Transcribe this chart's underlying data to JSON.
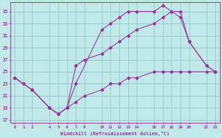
{
  "xlabel": "Windchill (Refroidissement éolien,°C)",
  "bg_color": "#c0e8e8",
  "grid_color": "#99cccc",
  "line_color": "#993399",
  "line1_x": [
    0,
    1,
    2,
    4,
    5,
    6,
    7,
    10,
    11,
    12,
    13,
    14,
    16,
    17,
    18,
    19,
    20,
    22,
    23
  ],
  "line1_y": [
    24,
    23,
    22,
    19,
    18,
    19,
    23,
    32,
    33,
    34,
    35,
    35,
    35,
    36,
    35,
    34,
    30,
    26,
    25
  ],
  "line2_x": [
    0,
    1,
    2,
    4,
    5,
    6,
    7,
    8,
    10,
    11,
    12,
    13,
    14,
    16,
    17,
    18,
    19,
    20,
    22,
    23
  ],
  "line2_y": [
    24,
    23,
    22,
    19,
    18,
    19,
    26,
    27,
    28,
    29,
    30,
    31,
    32,
    33,
    34,
    35,
    35,
    30,
    26,
    25
  ],
  "line3_x": [
    0,
    2,
    4,
    5,
    6,
    7,
    8,
    10,
    11,
    12,
    13,
    14,
    16,
    17,
    18,
    19,
    20,
    22,
    23
  ],
  "line3_y": [
    24,
    22,
    19,
    18,
    19,
    20,
    21,
    22,
    23,
    23,
    24,
    24,
    25,
    25,
    25,
    25,
    25,
    25,
    25
  ],
  "xtick_positions": [
    0,
    1,
    2,
    4,
    5,
    6,
    7,
    8,
    10,
    11,
    12,
    13,
    14,
    16,
    17,
    18,
    19,
    20,
    22,
    23
  ],
  "xtick_labels": [
    "0",
    "1",
    "2",
    "4",
    "5",
    "6",
    "7",
    "8",
    "10",
    "11",
    "12",
    "13",
    "14",
    "16",
    "17",
    "18",
    "19",
    "20",
    "22",
    "23"
  ],
  "ytick_positions": [
    17,
    19,
    21,
    23,
    25,
    27,
    29,
    31,
    33,
    35
  ],
  "ytick_labels": [
    "17",
    "19",
    "21",
    "23",
    "25",
    "27",
    "29",
    "31",
    "33",
    "35"
  ],
  "xlim": [
    -0.5,
    23.5
  ],
  "ylim": [
    16.5,
    36.5
  ]
}
